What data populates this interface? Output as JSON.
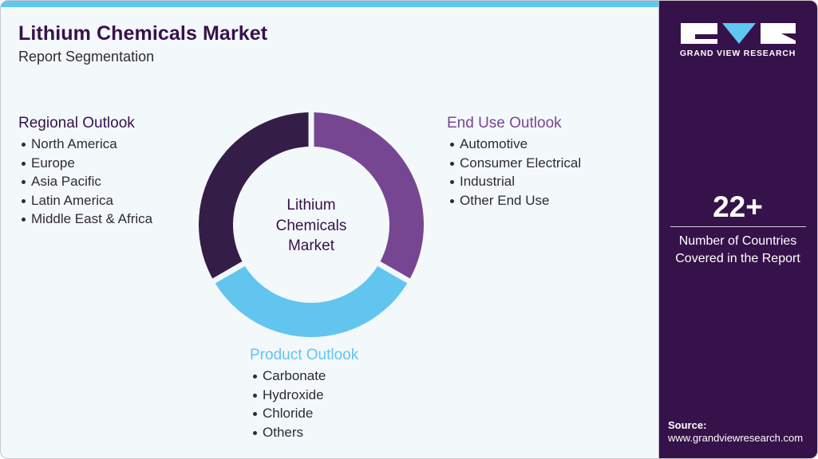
{
  "header": {
    "title": "Lithium Chemicals Market",
    "subtitle": "Report Segmentation"
  },
  "colors": {
    "brand_dark": "#36124a",
    "segment_regional": "#341d46",
    "segment_enduse": "#774692",
    "segment_product": "#62c5ef",
    "top_bar": "#5fc7f1",
    "background": "#f3f8fb"
  },
  "donut": {
    "center_label_lines": [
      "Lithium",
      "Chemicals",
      "Market"
    ],
    "segments": [
      {
        "name": "Regional Outlook",
        "color": "#341d46",
        "start_deg": 240,
        "end_deg": 360
      },
      {
        "name": "End Use Outlook",
        "color": "#774692",
        "start_deg": 0,
        "end_deg": 120
      },
      {
        "name": "Product Outlook",
        "color": "#62c5ef",
        "start_deg": 120,
        "end_deg": 240
      }
    ]
  },
  "segments": {
    "regional": {
      "heading": "Regional Outlook",
      "color": "#36124a",
      "items": [
        "North America",
        "Europe",
        "Asia Pacific",
        "Latin America",
        "Middle East & Africa"
      ]
    },
    "enduse": {
      "heading": "End Use Outlook",
      "color": "#774692",
      "items": [
        "Automotive",
        "Consumer Electrical",
        "Industrial",
        "Other End Use"
      ]
    },
    "product": {
      "heading": "Product Outlook",
      "color": "#62c5ef",
      "items": [
        "Carbonate",
        "Hydroxide",
        "Chloride",
        "Others"
      ]
    }
  },
  "sidebar": {
    "logo_text": "GRAND VIEW RESEARCH",
    "stat_value": "22+",
    "stat_label_line1": "Number of Countries",
    "stat_label_line2": "Covered in the Report",
    "source_label": "Source:",
    "source_url": "www.grandviewresearch.com"
  }
}
